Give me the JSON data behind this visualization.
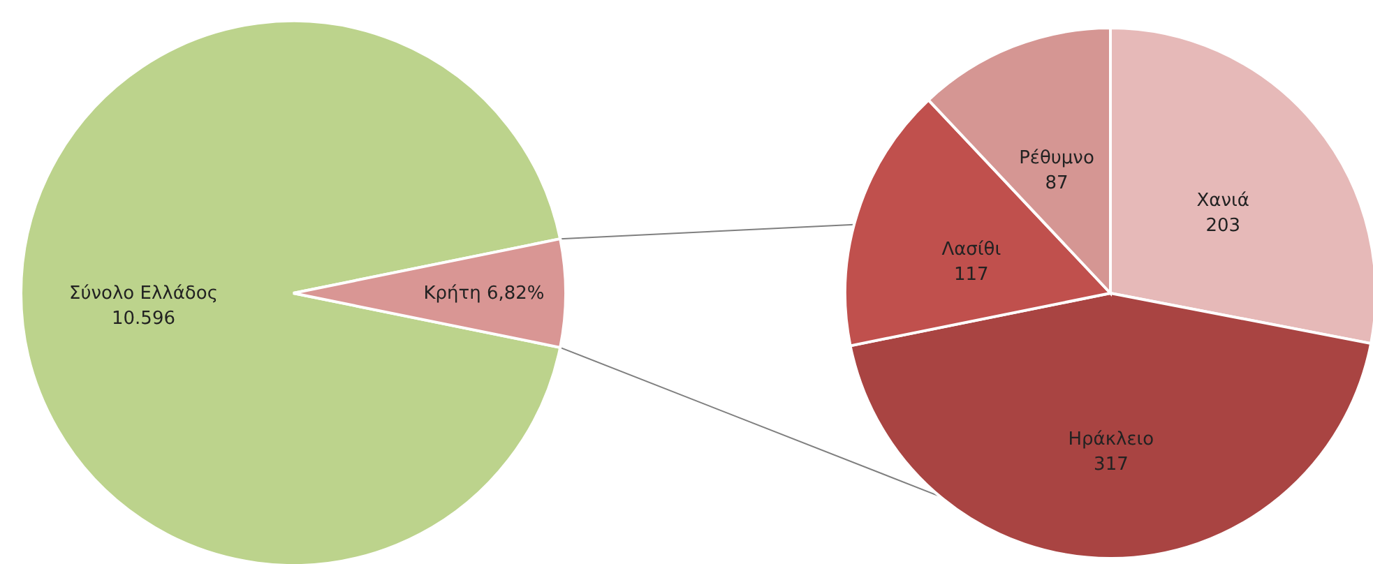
{
  "chart_data": [
    {
      "type": "pie",
      "categories": [
        "Σύνολο Ελλάδος",
        "Κρήτη 6,82%"
      ],
      "values": [
        10596,
        724
      ],
      "colors": [
        "#bcd38c",
        "#d99694"
      ],
      "value_labels": [
        "10.596",
        null
      ]
    },
    {
      "type": "pie",
      "categories": [
        "Χανιά",
        "Ηράκλειο",
        "Λασίθι",
        "Ρέθυμνο"
      ],
      "values": [
        203,
        317,
        117,
        87
      ],
      "colors": [
        "#e6b9b8",
        "#a94442",
        "#c0504d",
        "#d59693"
      ],
      "data_labels": true
    }
  ]
}
